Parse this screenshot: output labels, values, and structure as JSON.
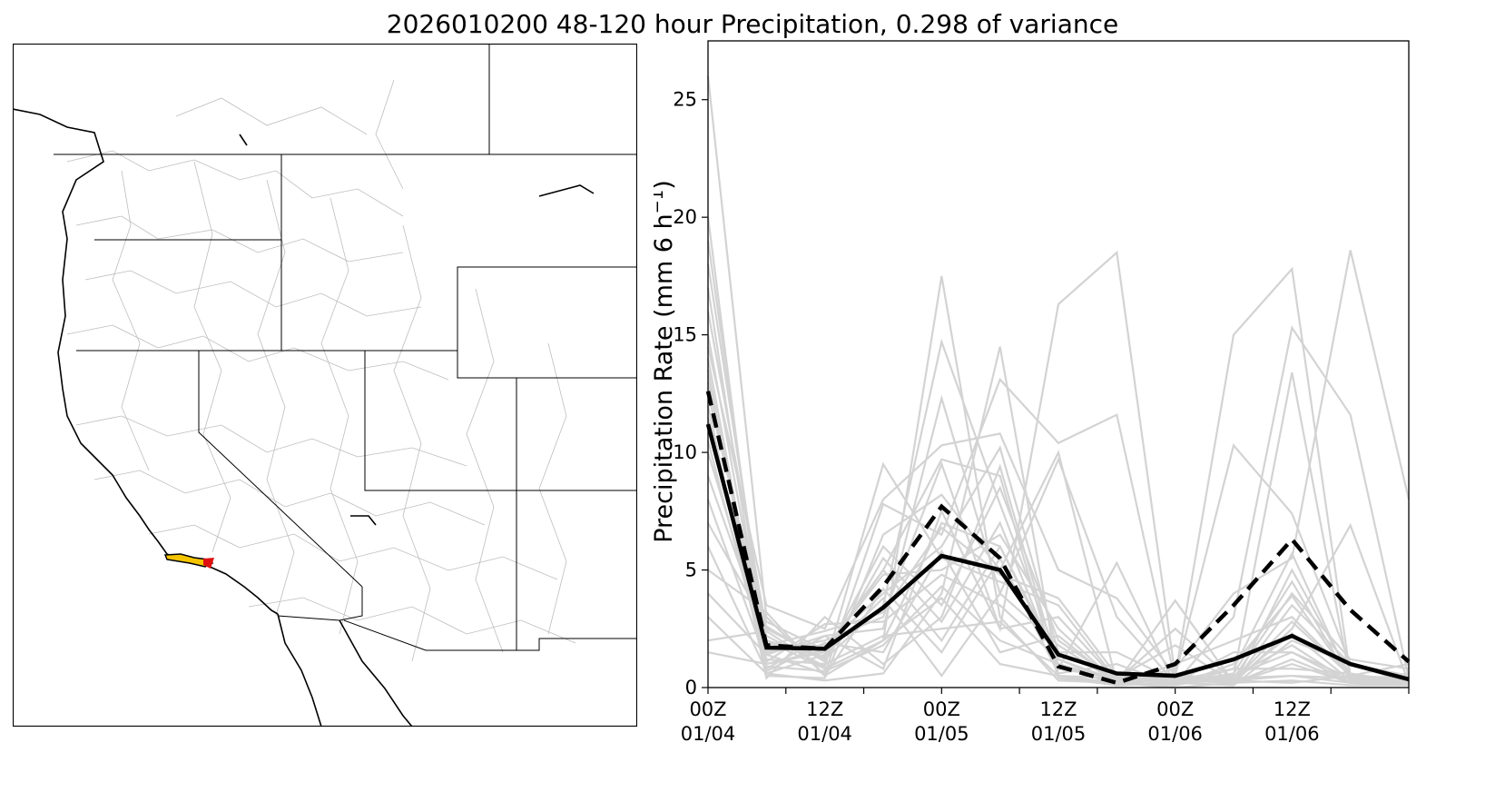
{
  "title": "2026010200 48-120 hour Precipitation, 0.298 of variance",
  "map": {
    "highlight_primary_color": "#f5c400",
    "highlight_secondary_color": "#e01010"
  },
  "chart_data": {
    "type": "line",
    "title": "2026010200 48-120 hour Precipitation, 0.298 of variance",
    "ylabel_main": "Precipitation Rate (mm 6 h",
    "ylabel_sup": "−1",
    "ylabel_close": ")",
    "ylim": [
      0,
      27.5
    ],
    "xlim": [
      0,
      18
    ],
    "x_steps_hours": [
      0,
      2,
      4,
      6,
      8,
      10,
      12,
      14,
      16,
      18
    ],
    "xticks": [
      {
        "x": 0,
        "line1": "00Z",
        "line2": "01/04"
      },
      {
        "x": 3,
        "line1": "12Z",
        "line2": "01/04"
      },
      {
        "x": 6,
        "line1": "00Z",
        "line2": "01/05"
      },
      {
        "x": 9,
        "line1": "12Z",
        "line2": "01/05"
      },
      {
        "x": 12,
        "line1": "00Z",
        "line2": "01/06"
      },
      {
        "x": 15,
        "line1": "12Z",
        "line2": "01/06"
      }
    ],
    "yticks": [
      0,
      5,
      10,
      15,
      20,
      25
    ],
    "x": [
      0,
      1.5,
      3,
      4.5,
      6,
      7.5,
      9,
      10.5,
      12,
      13.5,
      15,
      16.5,
      18
    ],
    "ensemble_color": "#d3d3d3",
    "main_color": "#000000",
    "ensemble": [
      [
        26.0,
        3.0,
        0.5,
        2.0,
        17.5,
        3.0,
        0.3,
        0.2,
        0.1,
        0.5,
        1.5,
        0.4,
        0.2
      ],
      [
        20.0,
        0.6,
        0.3,
        0.6,
        4.0,
        14.5,
        0.5,
        0.2,
        0.0,
        0.2,
        0.3,
        0.1,
        0.1
      ],
      [
        19.0,
        1.5,
        2.0,
        3.0,
        9.5,
        2.5,
        16.3,
        18.5,
        0.5,
        0.3,
        0.2,
        0.5,
        0.2
      ],
      [
        18.0,
        2.0,
        0.8,
        2.0,
        7.0,
        6.0,
        1.0,
        0.3,
        0.5,
        15.0,
        17.8,
        0.5,
        1.0
      ],
      [
        17.0,
        1.0,
        1.5,
        5.0,
        9.7,
        9.0,
        0.4,
        0.1,
        0.2,
        3.0,
        15.3,
        11.6,
        0.4
      ],
      [
        16.0,
        2.5,
        1.2,
        3.5,
        14.7,
        7.8,
        1.2,
        0.2,
        0.8,
        4.0,
        5.5,
        18.6,
        8.0
      ],
      [
        15.0,
        1.4,
        0.6,
        7.8,
        6.5,
        13.1,
        10.4,
        11.6,
        0.3,
        0.5,
        13.4,
        0.3,
        0.1
      ],
      [
        14.5,
        3.5,
        2.5,
        8.0,
        10.3,
        10.8,
        5.0,
        3.8,
        0.5,
        10.3,
        7.4,
        1.0,
        0.5
      ],
      [
        14.0,
        0.8,
        2.2,
        2.5,
        12.3,
        4.0,
        9.7,
        3.0,
        0.2,
        0.1,
        5.0,
        0.5,
        0.3
      ],
      [
        13.5,
        0.5,
        0.4,
        6.5,
        8.2,
        5.0,
        10.0,
        0.2,
        3.7,
        0.2,
        2.5,
        6.9,
        0.2
      ],
      [
        13.0,
        1.6,
        1.8,
        4.0,
        6.0,
        10.2,
        1.5,
        1.5,
        0.3,
        0.4,
        4.0,
        1.2,
        0.8
      ],
      [
        12.5,
        2.2,
        0.9,
        9.5,
        5.5,
        4.5,
        3.5,
        0.3,
        0.2,
        0.3,
        0.5,
        0.2,
        0.1
      ],
      [
        12.0,
        0.4,
        3.0,
        1.0,
        3.0,
        9.4,
        0.8,
        5.3,
        0.1,
        1.0,
        3.9,
        0.4,
        0.3
      ],
      [
        11.5,
        1.2,
        1.0,
        2.2,
        2.5,
        2.8,
        0.5,
        0.4,
        1.8,
        0.2,
        1.0,
        0.2,
        0.6
      ],
      [
        11.0,
        2.8,
        1.6,
        4.8,
        5.0,
        6.5,
        2.5,
        0.2,
        0.3,
        0.8,
        5.7,
        0.3,
        0.2
      ],
      [
        10.5,
        0.9,
        0.7,
        1.8,
        4.3,
        2.0,
        1.0,
        0.1,
        1.0,
        2.0,
        3.0,
        0.5,
        0.4
      ],
      [
        10.0,
        1.8,
        2.4,
        3.2,
        6.8,
        4.8,
        3.8,
        0.5,
        0.2,
        0.1,
        2.0,
        1.0,
        0.5
      ],
      [
        9.0,
        2.0,
        1.3,
        6.0,
        3.5,
        8.5,
        2.0,
        0.3,
        0.4,
        0.5,
        1.8,
        0.2,
        0.1
      ],
      [
        8.0,
        1.1,
        2.7,
        2.8,
        4.8,
        3.5,
        1.2,
        0.2,
        0.5,
        0.3,
        2.8,
        0.5,
        0.3
      ],
      [
        7.0,
        2.6,
        1.1,
        5.5,
        2.8,
        7.0,
        0.8,
        0.4,
        0.2,
        0.6,
        4.5,
        0.3,
        0.2
      ],
      [
        6.0,
        0.7,
        1.9,
        1.5,
        5.8,
        1.5,
        2.2,
        0.2,
        0.3,
        0.2,
        1.2,
        0.2,
        0.4
      ],
      [
        5.0,
        3.2,
        0.5,
        4.2,
        1.5,
        5.5,
        0.6,
        1.0,
        0.1,
        0.8,
        0.8,
        0.6,
        0.2
      ],
      [
        4.0,
        1.4,
        2.2,
        0.8,
        7.5,
        2.5,
        3.0,
        0.3,
        2.5,
        0.3,
        2.3,
        0.3,
        0.3
      ],
      [
        3.0,
        0.6,
        1.4,
        3.8,
        0.5,
        4.0,
        1.8,
        0.2,
        0.4,
        0.4,
        0.5,
        0.4,
        0.1
      ],
      [
        2.0,
        2.4,
        0.8,
        2.0,
        3.8,
        1.0,
        0.5,
        0.1,
        0.2,
        1.5,
        1.5,
        0.2,
        0.5
      ],
      [
        1.5,
        1.0,
        1.6,
        5.0,
        2.0,
        6.0,
        1.2,
        0.3,
        0.6,
        0.2,
        3.5,
        1.0,
        0.2
      ]
    ],
    "solid_series": [
      11.2,
      1.7,
      1.65,
      3.4,
      5.6,
      5.0,
      1.4,
      0.6,
      0.5,
      1.2,
      2.2,
      1.0,
      0.35
    ],
    "dashed_series": [
      12.6,
      1.8,
      1.65,
      4.3,
      7.7,
      5.5,
      0.9,
      0.2,
      1.0,
      3.5,
      6.3,
      3.3,
      1.1
    ],
    "grid": false,
    "legend": "none"
  }
}
